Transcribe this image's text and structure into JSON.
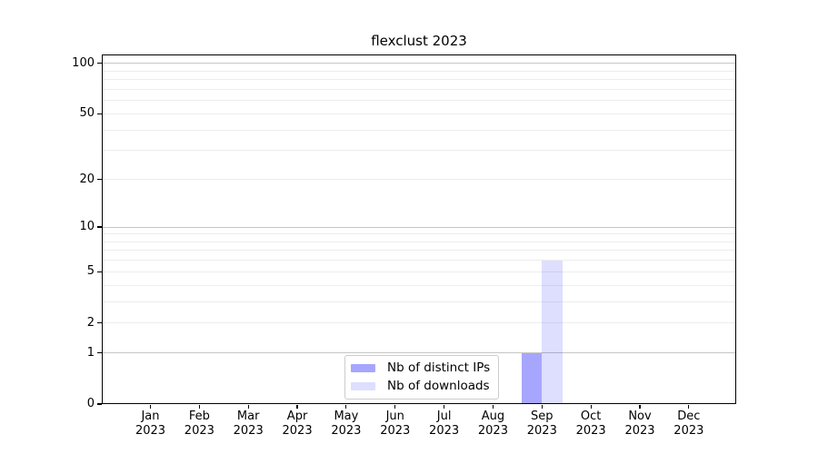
{
  "figure": {
    "background": "#ffffff"
  },
  "chart_data": {
    "type": "bar",
    "title": "flexclust 2023",
    "xlabel": "",
    "ylabel": "",
    "categories": [
      {
        "month": "Jan",
        "year": "2023"
      },
      {
        "month": "Feb",
        "year": "2023"
      },
      {
        "month": "Mar",
        "year": "2023"
      },
      {
        "month": "Apr",
        "year": "2023"
      },
      {
        "month": "May",
        "year": "2023"
      },
      {
        "month": "Jun",
        "year": "2023"
      },
      {
        "month": "Jul",
        "year": "2023"
      },
      {
        "month": "Aug",
        "year": "2023"
      },
      {
        "month": "Sep",
        "year": "2023"
      },
      {
        "month": "Oct",
        "year": "2023"
      },
      {
        "month": "Nov",
        "year": "2023"
      },
      {
        "month": "Dec",
        "year": "2023"
      }
    ],
    "series": [
      {
        "name": "Nb of distinct IPs",
        "color": "rgba(0,0,255,0.35)",
        "color_on_white": "#a6a6ff",
        "values": [
          0,
          0,
          0,
          0,
          0,
          0,
          0,
          0,
          1,
          0,
          0,
          0
        ]
      },
      {
        "name": "Nb of downloads",
        "color": "rgba(0,0,255,0.13)",
        "color_on_white": "#dedeff",
        "values": [
          0,
          0,
          0,
          0,
          0,
          0,
          0,
          0,
          6,
          0,
          0,
          0
        ]
      }
    ],
    "scale": "log1p",
    "ylim": [
      0,
      113
    ],
    "yticks": [
      0,
      1,
      2,
      5,
      10,
      20,
      50,
      100
    ],
    "minor_gridlines": [
      2,
      3,
      4,
      5,
      6,
      7,
      8,
      9,
      20,
      30,
      40,
      50,
      60,
      70,
      80,
      90
    ],
    "major_gridlines": [
      1,
      10,
      100
    ],
    "grid": "horizontal",
    "legend_position": "lower-center-inside"
  },
  "colors": {
    "spine": "#000000",
    "minor_grid": "#ededed",
    "major_grid": "#c6c6c6",
    "legend_border": "#cccccc",
    "text": "#000000",
    "background": "#ffffff"
  }
}
